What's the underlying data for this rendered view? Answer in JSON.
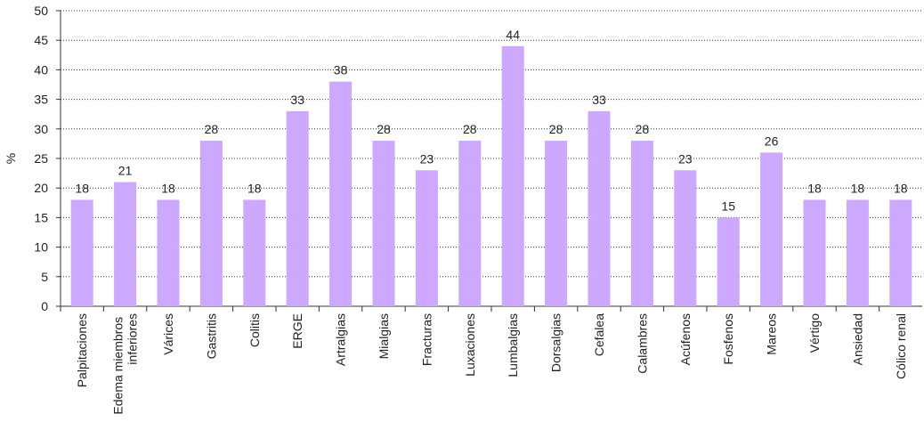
{
  "chart_data": {
    "type": "bar",
    "y_label": "%",
    "categories": [
      "Palpitaciones",
      "Edema miembros inferiores",
      "Várices",
      "Gastritis",
      "Colitis",
      "ERGE",
      "Artralgias",
      "Mialgias",
      "Fracturas",
      "Luxaciones",
      "Lumbalgias",
      "Dorsalgias",
      "Cefalea",
      "Calambres",
      "Acúfenos",
      "Fosfenos",
      "Mareos",
      "Vértigo",
      "Ansiedad",
      "Cólico renal"
    ],
    "values": [
      18,
      21,
      18,
      28,
      18,
      33,
      38,
      28,
      23,
      28,
      44,
      28,
      33,
      28,
      23,
      15,
      26,
      18,
      18,
      18
    ],
    "color": "#cc a8ff",
    "ylim": [
      0,
      50
    ],
    "yticks": [
      0,
      5,
      10,
      15,
      20,
      25,
      30,
      35,
      40,
      45,
      50
    ],
    "grid": true
  }
}
